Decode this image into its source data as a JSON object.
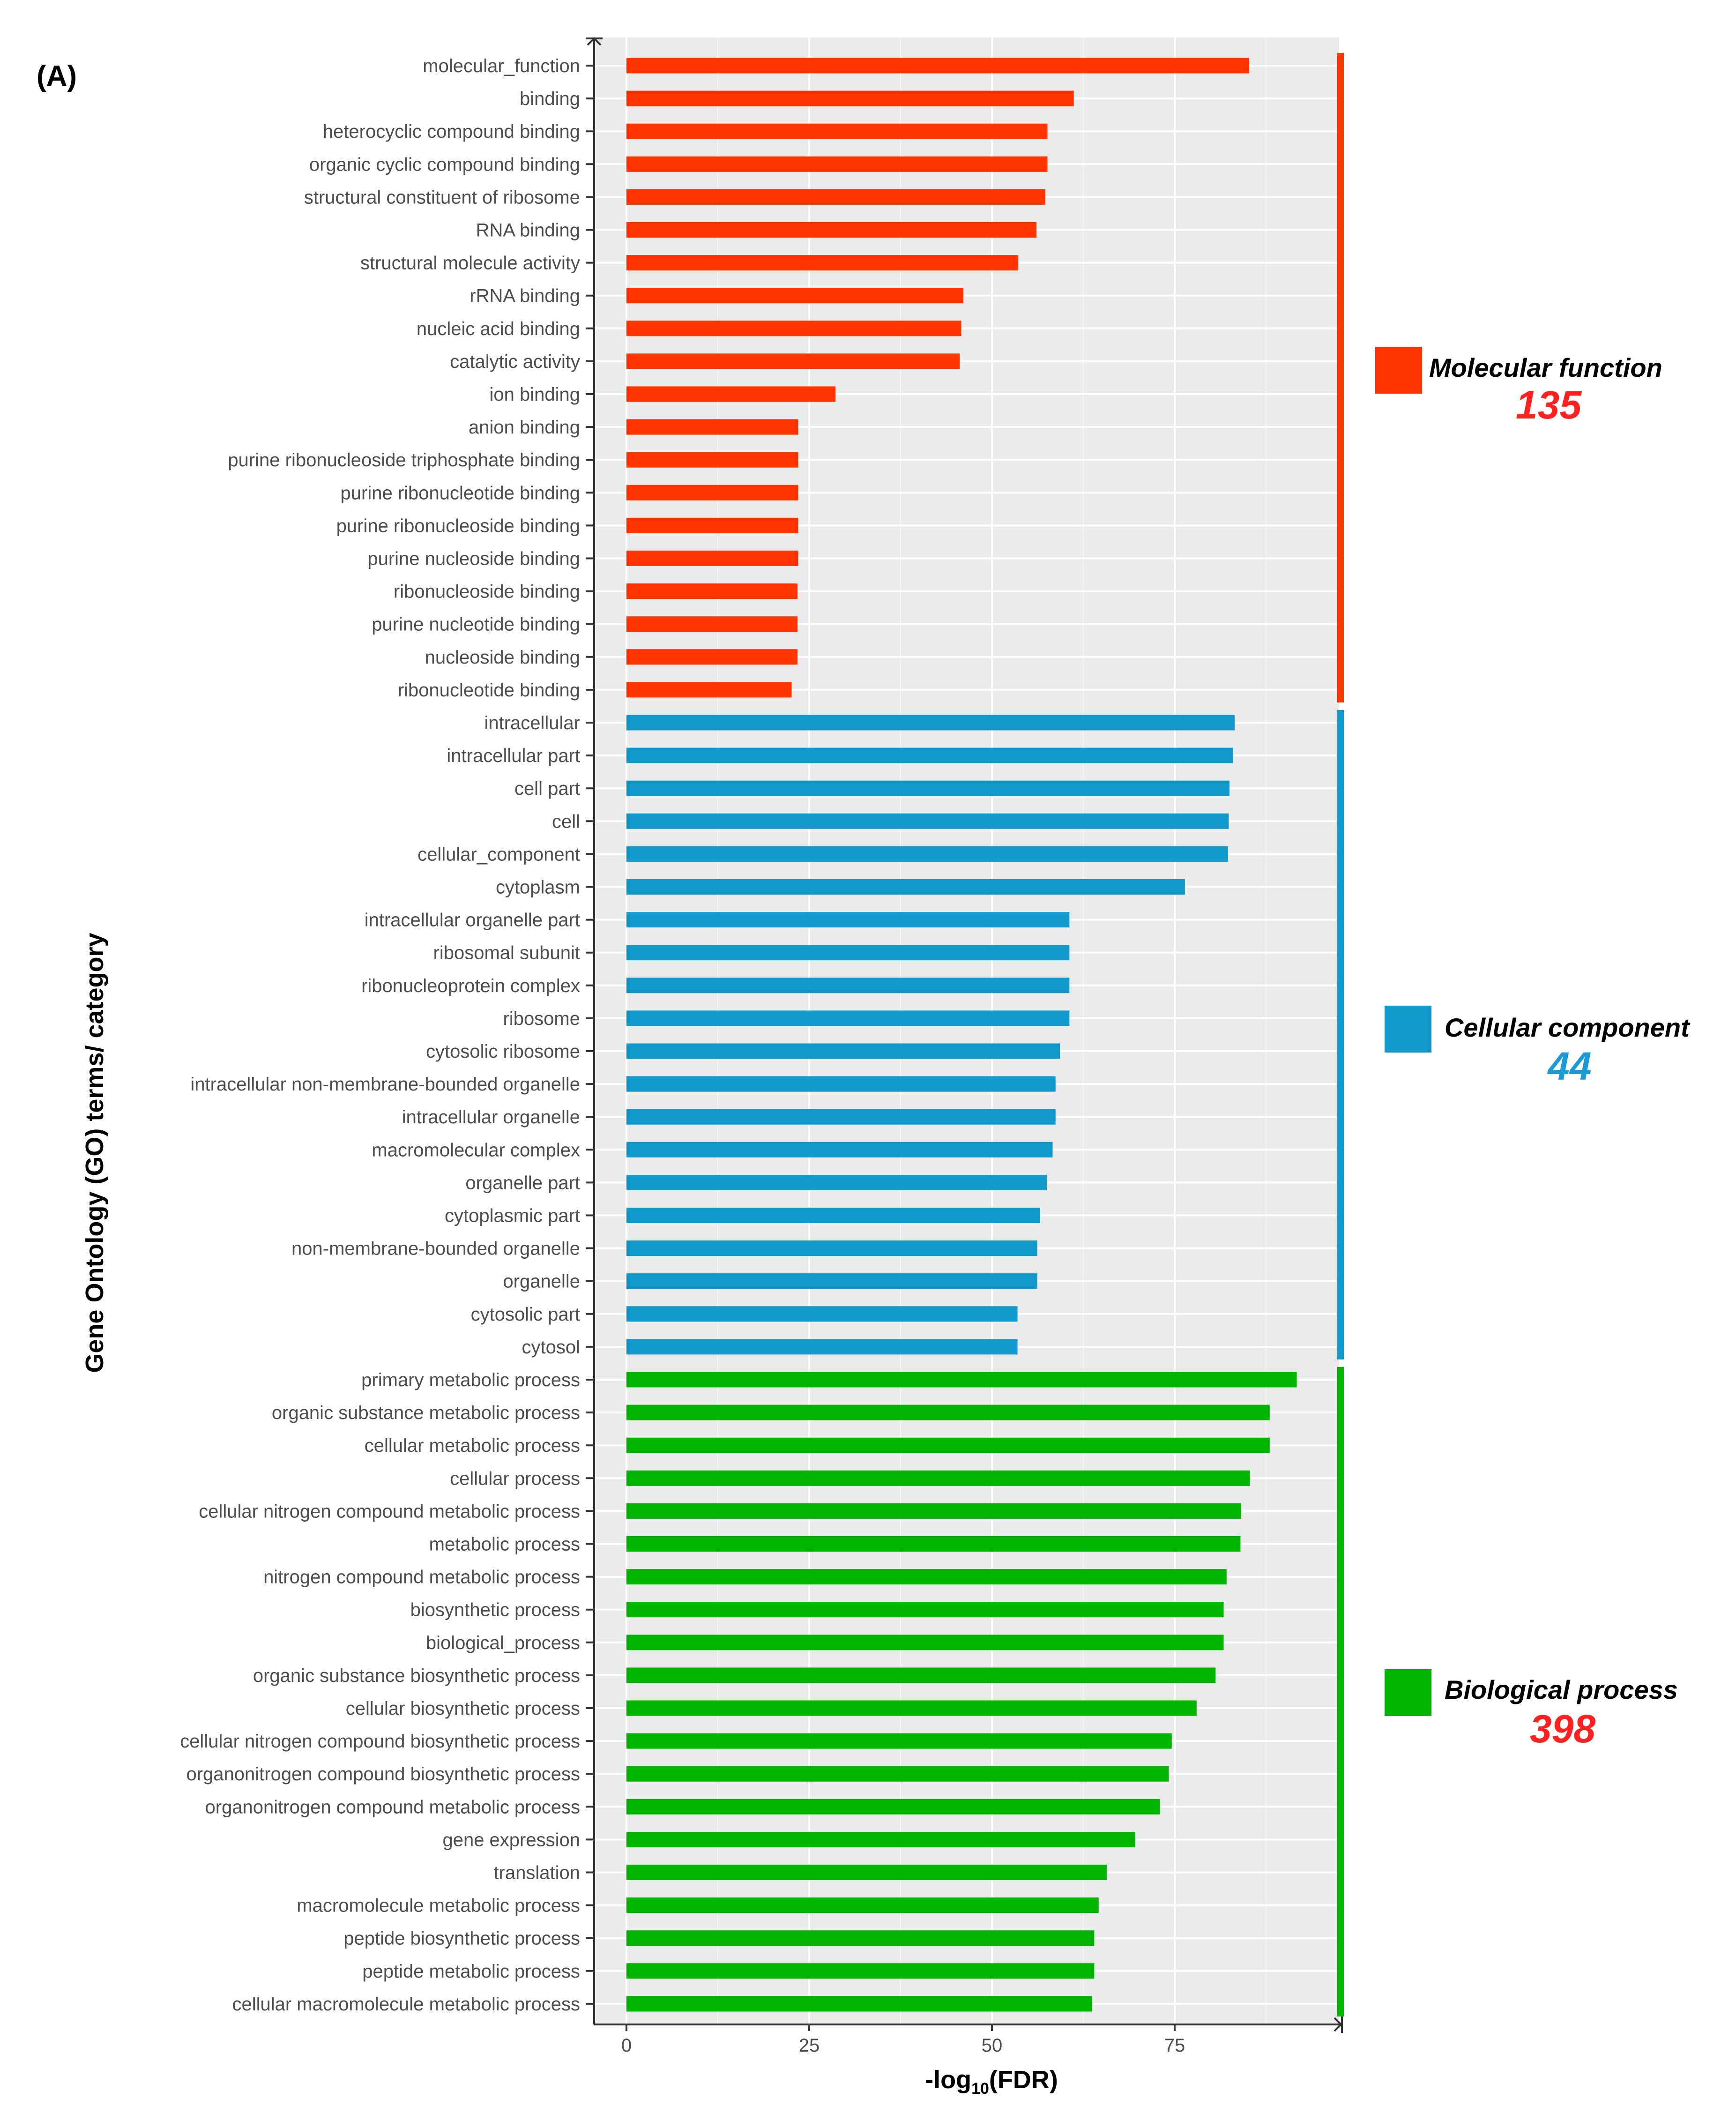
{
  "panel_label": "(A)",
  "chart_data": {
    "type": "bar",
    "orientation": "horizontal",
    "xlabel_prefix": "-log",
    "xlabel_sub": "10",
    "xlabel_suffix": "(FDR)",
    "ylabel": "Gene Ontology (GO) terms/ category",
    "xlim": [
      -4.5,
      98
    ],
    "xticks": [
      0,
      25,
      50,
      75
    ],
    "grid": true,
    "groups": [
      {
        "name": "Molecular function",
        "count": "135",
        "color": "#ff3300",
        "count_color": "#ff2020",
        "terms": [
          {
            "label": "molecular_function",
            "value": 85.2
          },
          {
            "label": "binding",
            "value": 61.2
          },
          {
            "label": "heterocyclic compound binding",
            "value": 57.6
          },
          {
            "label": "organic cyclic compound binding",
            "value": 57.6
          },
          {
            "label": "structural constituent of ribosome",
            "value": 57.3
          },
          {
            "label": "RNA binding",
            "value": 56.1
          },
          {
            "label": "structural molecule activity",
            "value": 53.6
          },
          {
            "label": "rRNA binding",
            "value": 46.1
          },
          {
            "label": "nucleic acid binding",
            "value": 45.8
          },
          {
            "label": "catalytic activity",
            "value": 45.6
          },
          {
            "label": "ion binding",
            "value": 28.6
          },
          {
            "label": "anion binding",
            "value": 23.5
          },
          {
            "label": "purine ribonucleoside triphosphate binding",
            "value": 23.5
          },
          {
            "label": "purine ribonucleotide binding",
            "value": 23.5
          },
          {
            "label": "purine ribonucleoside binding",
            "value": 23.5
          },
          {
            "label": "purine nucleoside binding",
            "value": 23.5
          },
          {
            "label": "ribonucleoside binding",
            "value": 23.4
          },
          {
            "label": "purine nucleotide binding",
            "value": 23.4
          },
          {
            "label": "nucleoside binding",
            "value": 23.4
          },
          {
            "label": "ribonucleotide binding",
            "value": 22.6
          }
        ]
      },
      {
        "name": "Cellular component",
        "count": "44",
        "color": "#1199cc",
        "count_color": "#1a9bd7",
        "terms": [
          {
            "label": "intracellular",
            "value": 83.2
          },
          {
            "label": "intracellular part",
            "value": 83.0
          },
          {
            "label": "cell part",
            "value": 82.5
          },
          {
            "label": "cell",
            "value": 82.4
          },
          {
            "label": "cellular_component",
            "value": 82.3
          },
          {
            "label": "cytoplasm",
            "value": 76.4
          },
          {
            "label": "intracellular organelle part",
            "value": 60.6
          },
          {
            "label": "ribosomal subunit",
            "value": 60.6
          },
          {
            "label": "ribonucleoprotein complex",
            "value": 60.6
          },
          {
            "label": "ribosome",
            "value": 60.6
          },
          {
            "label": "cytosolic ribosome",
            "value": 59.3
          },
          {
            "label": "intracellular non-membrane-bounded organelle",
            "value": 58.7
          },
          {
            "label": "intracellular organelle",
            "value": 58.7
          },
          {
            "label": "macromolecular complex",
            "value": 58.3
          },
          {
            "label": "organelle part",
            "value": 57.5
          },
          {
            "label": "cytoplasmic part",
            "value": 56.6
          },
          {
            "label": "non-membrane-bounded organelle",
            "value": 56.2
          },
          {
            "label": "organelle",
            "value": 56.2
          },
          {
            "label": "cytosolic part",
            "value": 53.5
          },
          {
            "label": "cytosol",
            "value": 53.5
          }
        ]
      },
      {
        "name": "Biological process",
        "count": "398",
        "color": "#00b400",
        "count_color": "#ff2020",
        "terms": [
          {
            "label": "primary metabolic process",
            "value": 91.7
          },
          {
            "label": "organic substance metabolic process",
            "value": 88.0
          },
          {
            "label": "cellular metabolic process",
            "value": 88.0
          },
          {
            "label": "cellular process",
            "value": 85.3
          },
          {
            "label": "cellular nitrogen compound metabolic process",
            "value": 84.1
          },
          {
            "label": "metabolic process",
            "value": 84.0
          },
          {
            "label": "nitrogen compound metabolic process",
            "value": 82.1
          },
          {
            "label": "biosynthetic process",
            "value": 81.7
          },
          {
            "label": "biological_process",
            "value": 81.7
          },
          {
            "label": "organic substance biosynthetic process",
            "value": 80.6
          },
          {
            "label": "cellular biosynthetic process",
            "value": 78.0
          },
          {
            "label": "cellular nitrogen compound biosynthetic process",
            "value": 74.6
          },
          {
            "label": "organonitrogen compound biosynthetic process",
            "value": 74.2
          },
          {
            "label": "organonitrogen compound metabolic process",
            "value": 73.0
          },
          {
            "label": "gene expression",
            "value": 69.6
          },
          {
            "label": "translation",
            "value": 65.7
          },
          {
            "label": "macromolecule metabolic process",
            "value": 64.6
          },
          {
            "label": "peptide biosynthetic process",
            "value": 64.0
          },
          {
            "label": "peptide metabolic process",
            "value": 64.0
          },
          {
            "label": "cellular macromolecule metabolic process",
            "value": 63.7
          }
        ]
      }
    ]
  }
}
